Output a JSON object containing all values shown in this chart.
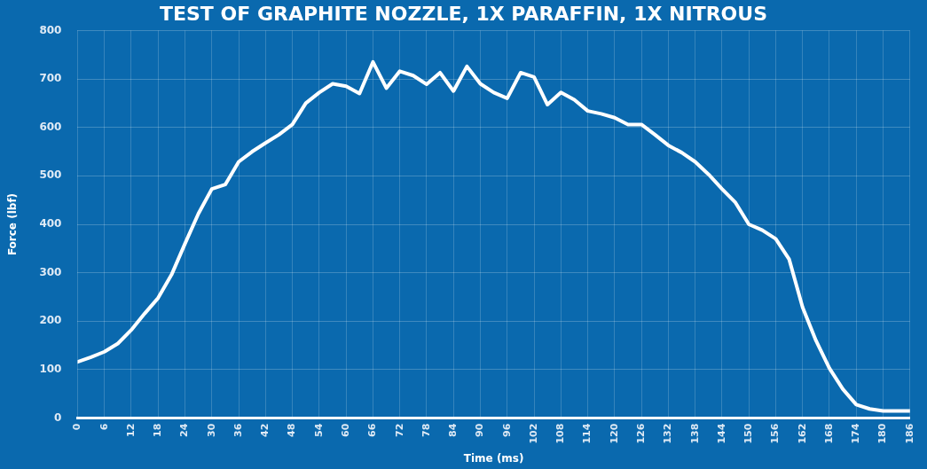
{
  "chart_data": {
    "type": "line",
    "title": "TEST OF GRAPHITE NOZZLE, 1X PARAFFIN, 1X NITROUS",
    "xlabel": "Time (ms)",
    "ylabel": "Force (lbf)",
    "x": [
      0,
      3,
      6,
      9,
      12,
      15,
      18,
      21,
      24,
      27,
      30,
      33,
      36,
      39,
      42,
      45,
      48,
      51,
      54,
      57,
      60,
      63,
      66,
      69,
      72,
      75,
      78,
      81,
      84,
      87,
      90,
      93,
      96,
      99,
      102,
      105,
      108,
      111,
      114,
      117,
      120,
      123,
      126,
      129,
      132,
      135,
      138,
      141,
      144,
      147,
      150,
      153,
      156,
      159,
      162,
      165,
      168,
      171,
      174,
      177,
      180,
      183,
      186
    ],
    "series": [
      {
        "color": "#ffffff",
        "values": [
          116,
          126,
          137,
          154,
          182,
          216,
          248,
          296,
          360,
          422,
          473,
          482,
          529,
          550,
          568,
          585,
          606,
          650,
          672,
          690,
          685,
          670,
          735,
          681,
          716,
          707,
          689,
          713,
          675,
          726,
          690,
          672,
          660,
          713,
          704,
          647,
          672,
          657,
          634,
          628,
          620,
          606,
          606,
          585,
          563,
          548,
          529,
          503,
          473,
          445,
          400,
          388,
          370,
          328,
          229,
          160,
          103,
          60,
          28,
          19,
          15,
          15,
          15
        ]
      }
    ],
    "xlim": [
      0,
      186
    ],
    "xticks": [
      0,
      6,
      12,
      18,
      24,
      30,
      36,
      42,
      48,
      54,
      60,
      66,
      72,
      78,
      84,
      90,
      96,
      102,
      108,
      114,
      120,
      126,
      132,
      138,
      144,
      150,
      156,
      162,
      168,
      174,
      180,
      186
    ],
    "ylim": [
      0,
      800
    ],
    "yticks": [
      0,
      100,
      200,
      300,
      400,
      500,
      600,
      700,
      800
    ],
    "grid": true,
    "marker": "none",
    "line_style": "solid"
  }
}
